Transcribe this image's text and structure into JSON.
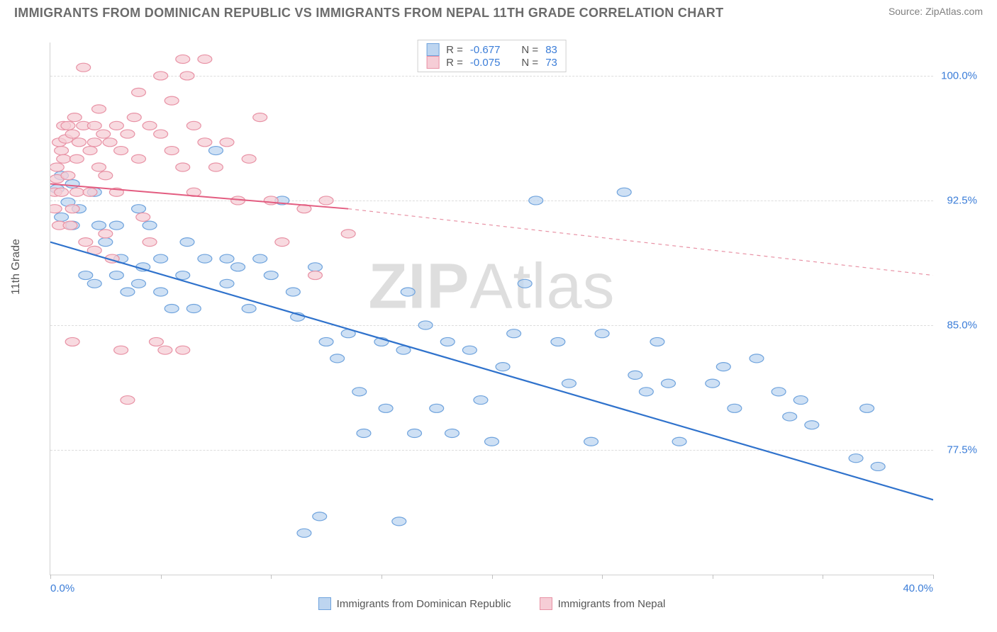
{
  "header": {
    "title": "IMMIGRANTS FROM DOMINICAN REPUBLIC VS IMMIGRANTS FROM NEPAL 11TH GRADE CORRELATION CHART",
    "source_prefix": "Source: ",
    "source_link": "ZipAtlas.com"
  },
  "chart": {
    "type": "scatter",
    "ylabel": "11th Grade",
    "xlim": [
      0,
      40
    ],
    "ylim": [
      70,
      102
    ],
    "x_ticks": [
      0,
      5,
      10,
      15,
      20,
      25,
      30,
      35,
      40
    ],
    "x_tick_labels": {
      "0": "0.0%",
      "40": "40.0%"
    },
    "y_ticks": [
      77.5,
      85.0,
      92.5,
      100.0
    ],
    "y_tick_labels": [
      "77.5%",
      "85.0%",
      "92.5%",
      "100.0%"
    ],
    "grid_color": "#dcdcdc",
    "background_color": "#ffffff",
    "watermark": "ZIPAtlas",
    "marker_radius": 8,
    "marker_stroke_width": 1.2,
    "series": [
      {
        "name": "Immigrants from Dominican Republic",
        "fill": "#bdd5f0",
        "stroke": "#6fa3dd",
        "r_label": "R = ",
        "r_value": "-0.677",
        "n_label": "N = ",
        "n_value": "83",
        "trend": {
          "x1": 0,
          "y1": 90,
          "x2": 40,
          "y2": 74.5,
          "color": "#2f72cc",
          "width": 2.2,
          "dash": ""
        },
        "points": [
          [
            0.3,
            93.2
          ],
          [
            0.5,
            94.0
          ],
          [
            0.5,
            91.5
          ],
          [
            0.8,
            92.4
          ],
          [
            1.0,
            93.5
          ],
          [
            1.0,
            91.0
          ],
          [
            1.3,
            92.0
          ],
          [
            1.6,
            88.0
          ],
          [
            2.0,
            93.0
          ],
          [
            2.0,
            87.5
          ],
          [
            2.2,
            91.0
          ],
          [
            2.5,
            90.0
          ],
          [
            3.0,
            91.0
          ],
          [
            3.0,
            88.0
          ],
          [
            3.2,
            89.0
          ],
          [
            3.5,
            87.0
          ],
          [
            4.0,
            92.0
          ],
          [
            4.0,
            87.5
          ],
          [
            4.2,
            88.5
          ],
          [
            4.5,
            91.0
          ],
          [
            5.0,
            89.0
          ],
          [
            5.0,
            87.0
          ],
          [
            5.5,
            86.0
          ],
          [
            6.0,
            88.0
          ],
          [
            6.2,
            90.0
          ],
          [
            6.5,
            86.0
          ],
          [
            7.0,
            89.0
          ],
          [
            7.5,
            95.5
          ],
          [
            8.0,
            87.5
          ],
          [
            8.0,
            89.0
          ],
          [
            8.5,
            88.5
          ],
          [
            9.0,
            86.0
          ],
          [
            9.5,
            89.0
          ],
          [
            10.0,
            88.0
          ],
          [
            10.5,
            92.5
          ],
          [
            11.0,
            87.0
          ],
          [
            11.2,
            85.5
          ],
          [
            11.5,
            72.5
          ],
          [
            12.0,
            88.5
          ],
          [
            12.2,
            73.5
          ],
          [
            12.5,
            84.0
          ],
          [
            13.0,
            83.0
          ],
          [
            13.5,
            84.5
          ],
          [
            14.0,
            81.0
          ],
          [
            14.2,
            78.5
          ],
          [
            15.0,
            84.0
          ],
          [
            15.2,
            80.0
          ],
          [
            15.8,
            73.2
          ],
          [
            16.0,
            83.5
          ],
          [
            16.2,
            87.0
          ],
          [
            16.5,
            78.5
          ],
          [
            17.0,
            85.0
          ],
          [
            17.5,
            80.0
          ],
          [
            18.0,
            84.0
          ],
          [
            18.2,
            78.5
          ],
          [
            19.0,
            83.5
          ],
          [
            19.5,
            80.5
          ],
          [
            20.0,
            78.0
          ],
          [
            20.5,
            82.5
          ],
          [
            21.0,
            84.5
          ],
          [
            21.5,
            87.5
          ],
          [
            22.0,
            92.5
          ],
          [
            23.0,
            84.0
          ],
          [
            23.5,
            81.5
          ],
          [
            24.5,
            78.0
          ],
          [
            25.0,
            84.5
          ],
          [
            26.0,
            93.0
          ],
          [
            26.5,
            82.0
          ],
          [
            27.0,
            81.0
          ],
          [
            27.5,
            84.0
          ],
          [
            28.0,
            81.5
          ],
          [
            28.5,
            78.0
          ],
          [
            30.0,
            81.5
          ],
          [
            30.5,
            82.5
          ],
          [
            31.0,
            80.0
          ],
          [
            32.0,
            83.0
          ],
          [
            33.0,
            81.0
          ],
          [
            33.5,
            79.5
          ],
          [
            34.0,
            80.5
          ],
          [
            34.5,
            79.0
          ],
          [
            36.5,
            77.0
          ],
          [
            37.5,
            76.5
          ],
          [
            37.0,
            80.0
          ]
        ]
      },
      {
        "name": "Immigrants from Nepal",
        "fill": "#f6cdd6",
        "stroke": "#e892a5",
        "r_label": "R = ",
        "r_value": "-0.075",
        "n_label": "N = ",
        "n_value": "73",
        "trend": {
          "x1": 0,
          "y1": 93.5,
          "x2": 13.5,
          "y2": 92.0,
          "color": "#e35c80",
          "width": 2.0,
          "dash": ""
        },
        "trend_ext": {
          "x1": 13.5,
          "y1": 92.0,
          "x2": 40,
          "y2": 88.0,
          "color": "#e892a5",
          "width": 1.2,
          "dash": "5,5"
        },
        "points": [
          [
            0.2,
            93.0
          ],
          [
            0.2,
            92.0
          ],
          [
            0.3,
            93.8
          ],
          [
            0.3,
            94.5
          ],
          [
            0.4,
            96.0
          ],
          [
            0.4,
            91.0
          ],
          [
            0.5,
            95.5
          ],
          [
            0.5,
            93.0
          ],
          [
            0.6,
            97.0
          ],
          [
            0.6,
            95.0
          ],
          [
            0.7,
            96.2
          ],
          [
            0.8,
            94.0
          ],
          [
            0.8,
            97.0
          ],
          [
            0.9,
            91.0
          ],
          [
            1.0,
            96.5
          ],
          [
            1.0,
            92.0
          ],
          [
            1.0,
            84.0
          ],
          [
            1.1,
            97.5
          ],
          [
            1.2,
            95.0
          ],
          [
            1.2,
            93.0
          ],
          [
            1.3,
            96.0
          ],
          [
            1.5,
            100.5
          ],
          [
            1.5,
            97.0
          ],
          [
            1.6,
            90.0
          ],
          [
            1.8,
            95.5
          ],
          [
            1.8,
            93.0
          ],
          [
            2.0,
            97.0
          ],
          [
            2.0,
            96.0
          ],
          [
            2.0,
            89.5
          ],
          [
            2.2,
            94.5
          ],
          [
            2.2,
            98.0
          ],
          [
            2.4,
            96.5
          ],
          [
            2.5,
            94.0
          ],
          [
            2.5,
            90.5
          ],
          [
            2.7,
            96.0
          ],
          [
            2.8,
            89.0
          ],
          [
            3.0,
            97.0
          ],
          [
            3.0,
            93.0
          ],
          [
            3.2,
            95.5
          ],
          [
            3.2,
            83.5
          ],
          [
            3.5,
            96.5
          ],
          [
            3.5,
            80.5
          ],
          [
            3.8,
            97.5
          ],
          [
            4.0,
            99.0
          ],
          [
            4.0,
            95.0
          ],
          [
            4.2,
            91.5
          ],
          [
            4.5,
            97.0
          ],
          [
            4.5,
            90.0
          ],
          [
            4.8,
            84.0
          ],
          [
            5.0,
            100.0
          ],
          [
            5.0,
            96.5
          ],
          [
            5.2,
            83.5
          ],
          [
            5.5,
            95.5
          ],
          [
            5.5,
            98.5
          ],
          [
            6.0,
            101.0
          ],
          [
            6.0,
            94.5
          ],
          [
            6.0,
            83.5
          ],
          [
            6.2,
            100.0
          ],
          [
            6.5,
            93.0
          ],
          [
            6.5,
            97.0
          ],
          [
            7.0,
            96.0
          ],
          [
            7.0,
            101.0
          ],
          [
            7.5,
            94.5
          ],
          [
            8.0,
            96.0
          ],
          [
            8.5,
            92.5
          ],
          [
            9.0,
            95.0
          ],
          [
            9.5,
            97.5
          ],
          [
            10.0,
            92.5
          ],
          [
            10.5,
            90.0
          ],
          [
            11.5,
            92.0
          ],
          [
            12.0,
            88.0
          ],
          [
            12.5,
            92.5
          ],
          [
            13.5,
            90.5
          ]
        ]
      }
    ]
  }
}
